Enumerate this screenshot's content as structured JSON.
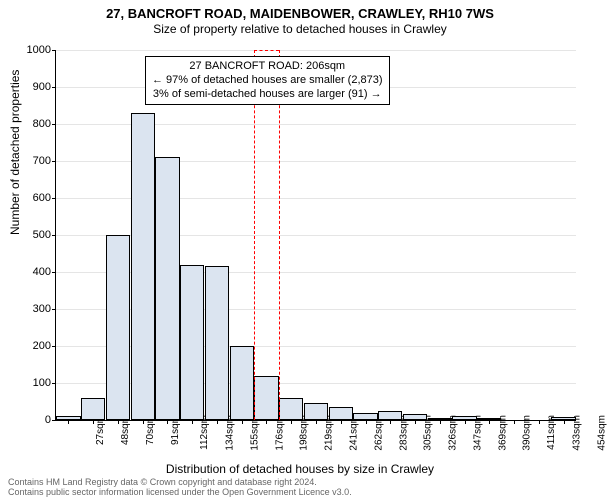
{
  "title": "27, BANCROFT ROAD, MAIDENBOWER, CRAWLEY, RH10 7WS",
  "subtitle": "Size of property relative to detached houses in Crawley",
  "ylabel": "Number of detached properties",
  "xlabel": "Distribution of detached houses by size in Crawley",
  "footer_line1": "Contains HM Land Registry data © Crown copyright and database right 2024.",
  "footer_line2": "Contains public sector information licensed under the Open Government Licence v3.0.",
  "callout": {
    "line1": "27 BANCROFT ROAD: 206sqm",
    "line2": "← 97% of detached houses are smaller (2,873)",
    "line3": "3% of semi-detached houses are larger (91) →"
  },
  "chart": {
    "type": "histogram",
    "ylim": [
      0,
      1000
    ],
    "ytick_step": 100,
    "bar_color": "#dbe4f0",
    "bar_border": "#000000",
    "marker_color": "#ff0000",
    "marker_x_category": "198sqm",
    "categories": [
      "27sqm",
      "48sqm",
      "70sqm",
      "91sqm",
      "112sqm",
      "134sqm",
      "155sqm",
      "176sqm",
      "198sqm",
      "219sqm",
      "241sqm",
      "262sqm",
      "283sqm",
      "305sqm",
      "326sqm",
      "347sqm",
      "369sqm",
      "390sqm",
      "411sqm",
      "433sqm",
      "454sqm"
    ],
    "values": [
      10,
      60,
      500,
      830,
      710,
      420,
      415,
      200,
      120,
      60,
      45,
      35,
      20,
      25,
      15,
      5,
      10,
      5,
      0,
      0,
      8
    ],
    "label_fontsize": 12,
    "tick_fontsize": 11
  }
}
